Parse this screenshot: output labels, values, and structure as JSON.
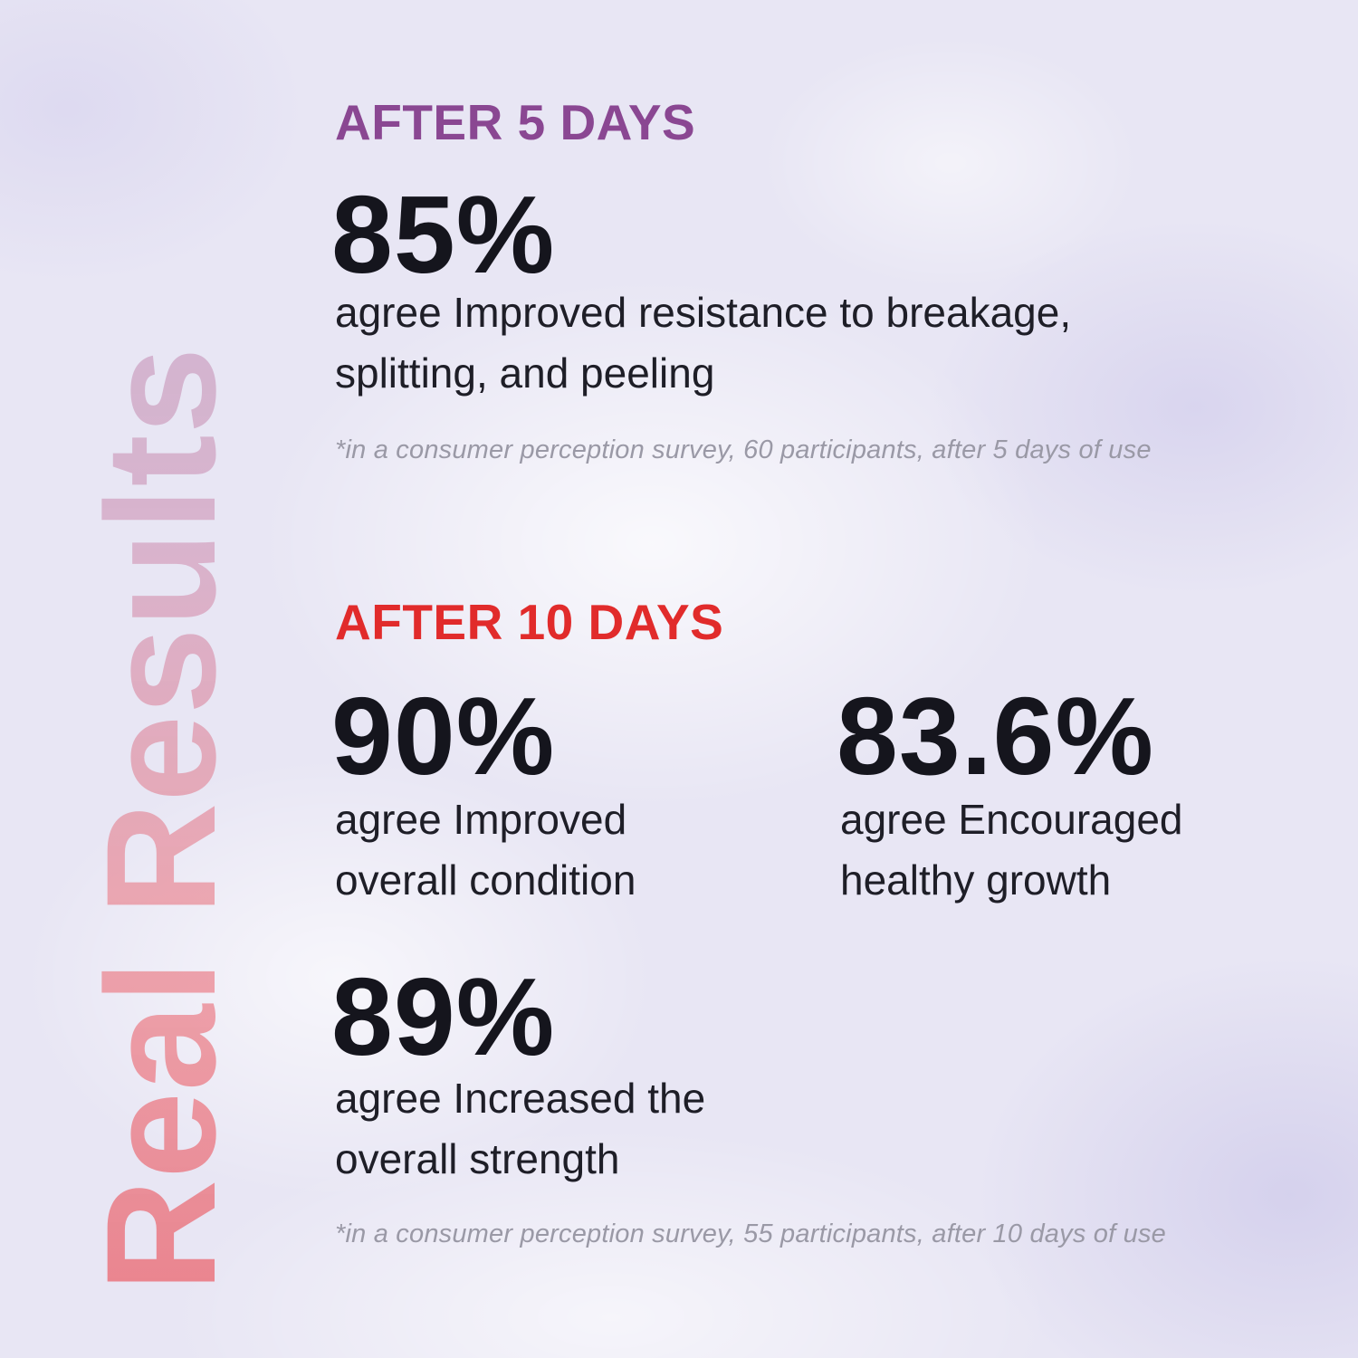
{
  "page": {
    "background_color": "#e8e6f4",
    "vertical_title": {
      "text": "Real Results",
      "gradient_start_color": "#ea6c75",
      "gradient_end_color": "#c6a8ca"
    },
    "sections": [
      {
        "id": "after-5-days",
        "label": "AFTER 5 DAYS",
        "label_color": "#8a4792",
        "stats": [
          {
            "value": "85%",
            "description": "agree Improved resistance to breakage, splitting, and peeling"
          }
        ],
        "footnote": "*in a consumer perception survey, 60 participants, after 5 days of use"
      },
      {
        "id": "after-10-days",
        "label": "AFTER 10 DAYS",
        "label_color": "#e12b2b",
        "stats": [
          {
            "value": "90%",
            "description": "agree Improved overall condition"
          },
          {
            "value": "83.6%",
            "description": "agree Encouraged healthy growth"
          },
          {
            "value": "89%",
            "description": "agree Increased the overall strength"
          }
        ],
        "footnote": "*in a consumer perception survey, 55 participants, after 10 days of use"
      }
    ],
    "stat_value_color": "#15151d",
    "body_text_color": "#1e1e27",
    "footnote_color": "#9a99a6"
  }
}
